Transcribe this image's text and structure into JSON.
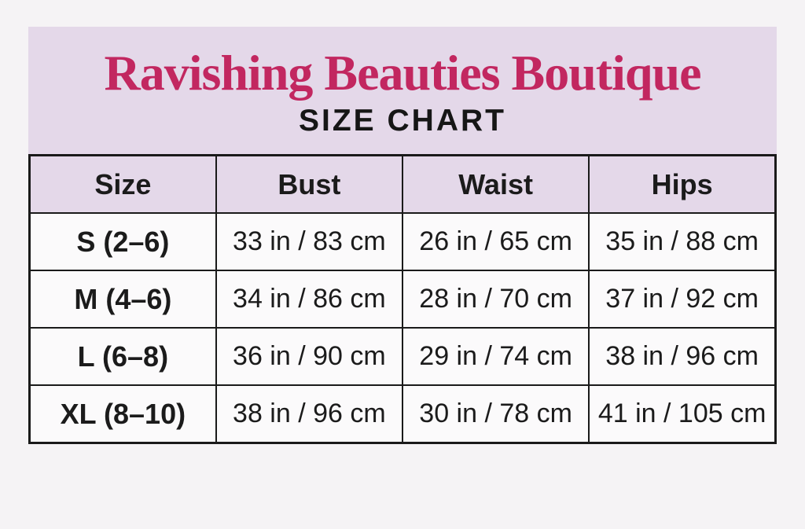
{
  "colors": {
    "page_background": "#f5f3f5",
    "panel_background": "#e4d8e9",
    "accent_pink": "#c22760",
    "text_black": "#1b1b1b",
    "border_black": "#1a1a1a",
    "row_background": "#fbfafb"
  },
  "header": {
    "title": "Ravishing Beauties Boutique",
    "subtitle": "SIZE CHART"
  },
  "table": {
    "columns": [
      "Size",
      "Bust",
      "Waist",
      "Hips"
    ],
    "rows": [
      [
        "S (2–6)",
        "33 in / 83 cm",
        "26 in / 65 cm",
        "35 in / 88 cm"
      ],
      [
        "M (4–6)",
        "34 in / 86 cm",
        "28 in / 70 cm",
        "37 in / 92 cm"
      ],
      [
        "L (6–8)",
        "36 in / 90 cm",
        "29 in / 74 cm",
        "38 in / 96 cm"
      ],
      [
        "XL (8–10)",
        "38 in / 96 cm",
        "30 in / 78 cm",
        "41 in / 105 cm"
      ]
    ]
  },
  "chart_data": {
    "type": "table",
    "title": "Ravishing Beauties Boutique",
    "subtitle": "SIZE CHART",
    "columns": [
      "Size",
      "Bust",
      "Waist",
      "Hips"
    ],
    "rows": [
      {
        "size": "S (2–6)",
        "bust_in": 33,
        "bust_cm": 83,
        "waist_in": 26,
        "waist_cm": 65,
        "hips_in": 35,
        "hips_cm": 88
      },
      {
        "size": "M (4–6)",
        "bust_in": 34,
        "bust_cm": 86,
        "waist_in": 28,
        "waist_cm": 70,
        "hips_in": 37,
        "hips_cm": 92
      },
      {
        "size": "L (6–8)",
        "bust_in": 36,
        "bust_cm": 90,
        "waist_in": 29,
        "waist_cm": 74,
        "hips_in": 38,
        "hips_cm": 96
      },
      {
        "size": "XL (8–10)",
        "bust_in": 38,
        "bust_cm": 96,
        "waist_in": 30,
        "waist_cm": 78,
        "hips_in": 41,
        "hips_cm": 105
      }
    ]
  }
}
